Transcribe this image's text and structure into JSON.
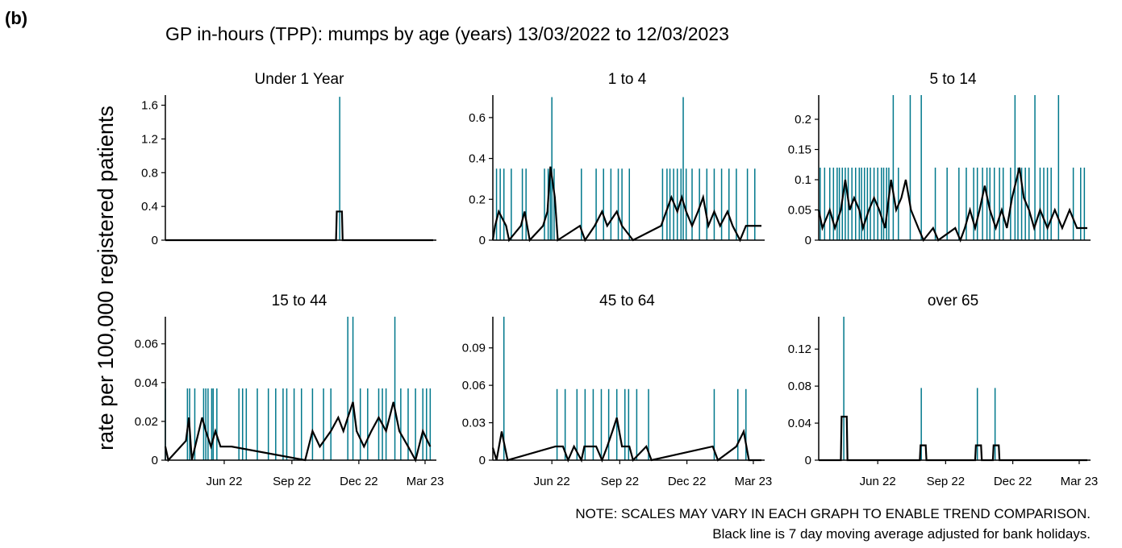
{
  "figure_label": "(b)",
  "title": "GP in-hours (TPP): mumps by age (years) 13/03/2022 to 12/03/2023",
  "ylabel": "rate per 100,000 registered patients",
  "notes": [
    "NOTE: SCALES MAY VARY IN EACH GRAPH TO ENABLE TREND COMPARISON.",
    "Black line is 7 day moving average adjusted for bank holidays."
  ],
  "chart_data": [
    {
      "type": "spike",
      "title": "Under 1 Year",
      "xlim": [
        0,
        364
      ],
      "ylim": [
        0,
        1.72
      ],
      "yticks": [
        0.0,
        0.4,
        0.8,
        1.2,
        1.6
      ],
      "series": [
        {
          "color": "#00788c",
          "style": "spike",
          "x": [
            237
          ],
          "values": [
            1.7
          ]
        },
        {
          "color": "#000000",
          "style": "line",
          "x": [
            0,
            232,
            233,
            240,
            241,
            364
          ],
          "values": [
            0,
            0,
            0.34,
            0.34,
            0,
            0
          ]
        }
      ]
    },
    {
      "type": "spike",
      "title": "1 to 4",
      "xlim": [
        0,
        364
      ],
      "ylim": [
        0,
        0.71
      ],
      "yticks": [
        0.0,
        0.2,
        0.4,
        0.6
      ],
      "series": [
        {
          "color": "#00788c",
          "style": "spike",
          "x": [
            5,
            10,
            15,
            25,
            40,
            45,
            70,
            75,
            78,
            80,
            83,
            120,
            140,
            150,
            160,
            170,
            175,
            185,
            230,
            236,
            240,
            245,
            250,
            255,
            258,
            262,
            270,
            280,
            290,
            300,
            310,
            320,
            330,
            345,
            355
          ],
          "values": [
            0.35,
            0.35,
            0.35,
            0.35,
            0.35,
            0.35,
            0.35,
            0.35,
            0.35,
            0.7,
            0.35,
            0.35,
            0.35,
            0.35,
            0.35,
            0.35,
            0.35,
            0.35,
            0.35,
            0.35,
            0.35,
            0.35,
            0.35,
            0.35,
            0.7,
            0.35,
            0.35,
            0.35,
            0.35,
            0.35,
            0.35,
            0.35,
            0.35,
            0.35,
            0.35
          ]
        },
        {
          "color": "#000000",
          "style": "line",
          "x": [
            0,
            3,
            8,
            18,
            22,
            38,
            43,
            50,
            68,
            74,
            78,
            84,
            88,
            118,
            125,
            138,
            148,
            155,
            168,
            175,
            190,
            228,
            235,
            242,
            250,
            256,
            262,
            270,
            278,
            285,
            292,
            300,
            308,
            318,
            325,
            335,
            343,
            364
          ],
          "values": [
            0,
            0.07,
            0.14,
            0.07,
            0,
            0.07,
            0.14,
            0,
            0.07,
            0.14,
            0.36,
            0.21,
            0,
            0.07,
            0,
            0.07,
            0.14,
            0.07,
            0.14,
            0.07,
            0,
            0.07,
            0.14,
            0.21,
            0.14,
            0.21,
            0.14,
            0.07,
            0.14,
            0.21,
            0.07,
            0.14,
            0.07,
            0.14,
            0.07,
            0,
            0.07,
            0.07
          ]
        }
      ]
    },
    {
      "type": "spike",
      "title": "5 to 14",
      "xlim": [
        0,
        364
      ],
      "ylim": [
        0,
        0.24
      ],
      "yticks": [
        0.0,
        0.05,
        0.1,
        0.15,
        0.2
      ],
      "series": [
        {
          "color": "#00788c",
          "style": "spike",
          "x": [
            2,
            8,
            15,
            20,
            25,
            28,
            32,
            36,
            40,
            45,
            50,
            55,
            58,
            62,
            66,
            70,
            75,
            80,
            85,
            88,
            92,
            95,
            101,
            108,
            124,
            139,
            158,
            174,
            190,
            200,
            210,
            215,
            222,
            228,
            232,
            238,
            245,
            250,
            260,
            266,
            270,
            275,
            280,
            285,
            293,
            300,
            305,
            310,
            315,
            325,
            345,
            355,
            360
          ],
          "values": [
            0.12,
            0.12,
            0.12,
            0.12,
            0.12,
            0.12,
            0.12,
            0.12,
            0.12,
            0.12,
            0.12,
            0.12,
            0.12,
            0.12,
            0.12,
            0.12,
            0.12,
            0.12,
            0.12,
            0.12,
            0.12,
            0.12,
            0.24,
            0.12,
            0.24,
            0.24,
            0.12,
            0.12,
            0.12,
            0.12,
            0.12,
            0.12,
            0.12,
            0.12,
            0.12,
            0.12,
            0.12,
            0.12,
            0.12,
            0.24,
            0.12,
            0.12,
            0.12,
            0.12,
            0.24,
            0.12,
            0.12,
            0.12,
            0.12,
            0.24,
            0.12,
            0.12,
            0.12
          ]
        },
        {
          "color": "#000000",
          "style": "line",
          "x": [
            0,
            5,
            15,
            22,
            30,
            36,
            42,
            48,
            55,
            60,
            68,
            75,
            82,
            90,
            98,
            105,
            112,
            118,
            125,
            135,
            142,
            155,
            162,
            185,
            192,
            198,
            205,
            212,
            218,
            225,
            232,
            240,
            248,
            255,
            262,
            268,
            272,
            278,
            285,
            292,
            300,
            310,
            320,
            330,
            340,
            350,
            364
          ],
          "values": [
            0.05,
            0.02,
            0.05,
            0.02,
            0.05,
            0.1,
            0.05,
            0.07,
            0.05,
            0.02,
            0.05,
            0.07,
            0.05,
            0.02,
            0.1,
            0.05,
            0.07,
            0.1,
            0.05,
            0.02,
            0,
            0.02,
            0,
            0.02,
            0,
            0.02,
            0.05,
            0.02,
            0.05,
            0.09,
            0.05,
            0.02,
            0.05,
            0.02,
            0.07,
            0.1,
            0.12,
            0.07,
            0.05,
            0.02,
            0.05,
            0.02,
            0.05,
            0.02,
            0.05,
            0.02,
            0.02
          ]
        }
      ]
    },
    {
      "type": "spike",
      "title": "15 to 44",
      "xlim": [
        0,
        364
      ],
      "ylim": [
        0,
        0.074
      ],
      "yticks": [
        0.0,
        0.02,
        0.04,
        0.06
      ],
      "xticks": [
        {
          "value": 80,
          "label": "Jun 22"
        },
        {
          "value": 172,
          "label": "Sep 22"
        },
        {
          "value": 263,
          "label": "Dec 22"
        },
        {
          "value": 353,
          "label": "Mar 23"
        }
      ],
      "series": [
        {
          "color": "#00788c",
          "style": "spike",
          "x": [
            0,
            30,
            33,
            40,
            52,
            55,
            58,
            63,
            65,
            70,
            100,
            105,
            110,
            125,
            140,
            150,
            160,
            165,
            175,
            185,
            200,
            215,
            225,
            248,
            255,
            265,
            275,
            290,
            295,
            300,
            312,
            320,
            330,
            340,
            350,
            355,
            360
          ],
          "values": [
            0.037,
            0.037,
            0.037,
            0.037,
            0.037,
            0.037,
            0.037,
            0.037,
            0.037,
            0.037,
            0.037,
            0.037,
            0.037,
            0.037,
            0.037,
            0.037,
            0.037,
            0.037,
            0.037,
            0.037,
            0.037,
            0.037,
            0.037,
            0.074,
            0.074,
            0.037,
            0.037,
            0.037,
            0.037,
            0.037,
            0.074,
            0.037,
            0.037,
            0.037,
            0.037,
            0.037,
            0.037
          ]
        },
        {
          "color": "#000000",
          "style": "line",
          "x": [
            0,
            4,
            28,
            32,
            36,
            50,
            55,
            62,
            68,
            75,
            90,
            190,
            200,
            210,
            225,
            235,
            242,
            248,
            255,
            260,
            270,
            280,
            290,
            300,
            310,
            318,
            330,
            340,
            350,
            360
          ],
          "values": [
            0.007,
            0,
            0.01,
            0.022,
            0,
            0.022,
            0.015,
            0.007,
            0.015,
            0.007,
            0.007,
            0,
            0.015,
            0.007,
            0.015,
            0.022,
            0.015,
            0.022,
            0.03,
            0.015,
            0.007,
            0.015,
            0.022,
            0.015,
            0.03,
            0.015,
            0.007,
            0,
            0.015,
            0.007
          ]
        }
      ]
    },
    {
      "type": "spike",
      "title": "45 to 64",
      "xlim": [
        0,
        364
      ],
      "ylim": [
        0,
        0.115
      ],
      "yticks": [
        0.0,
        0.03,
        0.06,
        0.09
      ],
      "xticks": [
        {
          "value": 80,
          "label": "Jun 22"
        },
        {
          "value": 172,
          "label": "Sep 22"
        },
        {
          "value": 263,
          "label": "Dec 22"
        },
        {
          "value": 353,
          "label": "Mar 23"
        }
      ],
      "series": [
        {
          "color": "#00788c",
          "style": "spike",
          "x": [
            15,
            87,
            98,
            114,
            125,
            136,
            147,
            157,
            168,
            179,
            184,
            195,
            211,
            300,
            332,
            343
          ],
          "values": [
            0.115,
            0.057,
            0.057,
            0.057,
            0.057,
            0.057,
            0.057,
            0.057,
            0.057,
            0.057,
            0.057,
            0.057,
            0.057,
            0.057,
            0.057,
            0.057
          ]
        },
        {
          "color": "#000000",
          "style": "line",
          "x": [
            0,
            5,
            12,
            20,
            85,
            95,
            102,
            110,
            120,
            124,
            132,
            140,
            148,
            155,
            162,
            168,
            175,
            185,
            190,
            208,
            215,
            298,
            305,
            330,
            340,
            347,
            364
          ],
          "values": [
            0.01,
            0,
            0.023,
            0,
            0.011,
            0.011,
            0,
            0.011,
            0,
            0.011,
            0.011,
            0.011,
            0,
            0.011,
            0.023,
            0.034,
            0.011,
            0.011,
            0,
            0.011,
            0,
            0.011,
            0,
            0.011,
            0.023,
            0,
            0
          ]
        }
      ]
    },
    {
      "type": "spike",
      "title": "over 65",
      "xlim": [
        0,
        364
      ],
      "ylim": [
        0,
        0.155
      ],
      "yticks": [
        0.0,
        0.04,
        0.08,
        0.12
      ],
      "xticks": [
        {
          "value": 80,
          "label": "Jun 22"
        },
        {
          "value": 172,
          "label": "Sep 22"
        },
        {
          "value": 263,
          "label": "Dec 22"
        },
        {
          "value": 353,
          "label": "Mar 23"
        }
      ],
      "series": [
        {
          "color": "#00788c",
          "style": "spike",
          "x": [
            34,
            139,
            215,
            239
          ],
          "values": [
            0.155,
            0.078,
            0.078,
            0.078
          ]
        },
        {
          "color": "#000000",
          "style": "line",
          "x": [
            0,
            30,
            31,
            38,
            39,
            137,
            138,
            145,
            146,
            212,
            213,
            220,
            221,
            236,
            237,
            244,
            245,
            364
          ],
          "values": [
            0,
            0,
            0.047,
            0.047,
            0,
            0,
            0.016,
            0.016,
            0,
            0,
            0.016,
            0.016,
            0,
            0,
            0.016,
            0.016,
            0,
            0
          ]
        }
      ]
    }
  ]
}
